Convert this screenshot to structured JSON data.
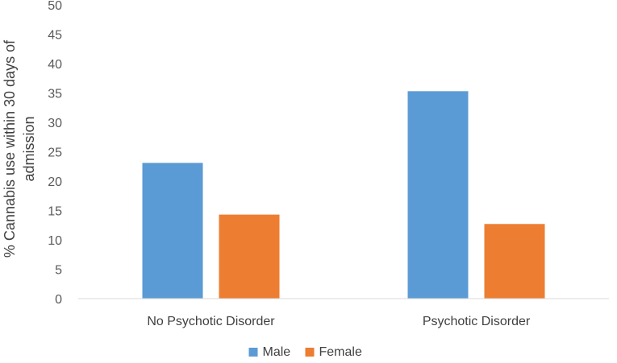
{
  "chart_data": {
    "type": "bar",
    "title": "",
    "xlabel": "",
    "ylabel_lines": [
      "% Cannabis use within 30 days of",
      "admission"
    ],
    "categories": [
      "No Psychotic Disorder",
      "Psychotic Disorder"
    ],
    "series": [
      {
        "name": "Male",
        "values": [
          23.1,
          35.3
        ],
        "color": "#5b9bd5"
      },
      {
        "name": "Female",
        "values": [
          14.3,
          12.7
        ],
        "color": "#ed7d31"
      }
    ],
    "ylim": [
      0,
      50
    ],
    "yticks": [
      "0",
      "5",
      "10",
      "15",
      "20",
      "25",
      "30",
      "35",
      "40",
      "45",
      "50"
    ],
    "grid": false,
    "legend_position": "bottom"
  }
}
